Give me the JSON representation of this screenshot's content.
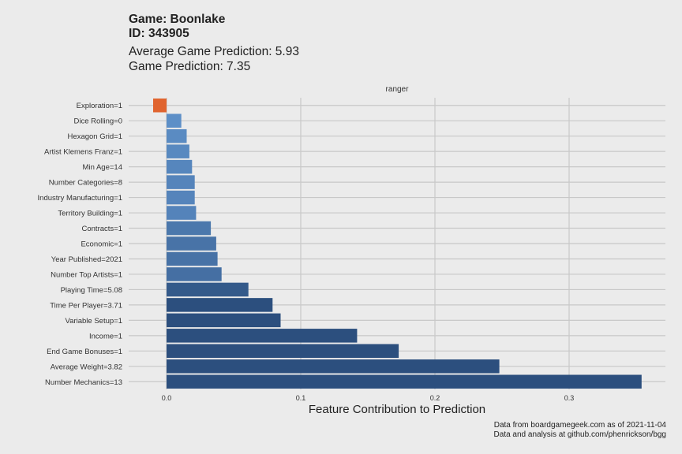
{
  "title": {
    "line1": "Game: Boonlake",
    "line2": "ID: 343905"
  },
  "subtitle": {
    "line1": "Average Game Prediction: 5.93",
    "line2": "Game Prediction: 7.35"
  },
  "caption": {
    "line1": "Data from boardgamegeek.com as of 2021-11-04",
    "line2": "Data and analysis at github.com/phenrickson/bgg"
  },
  "colors": {
    "negative": "#e0642f",
    "positive_low": "#5d8fc7",
    "positive_high": "#2c4f7e"
  },
  "chart_data": {
    "type": "bar",
    "orientation": "horizontal",
    "facet_label": "ranger",
    "xlabel": "Feature Contribution to Prediction",
    "ylabel": "",
    "xlim": [
      -0.03,
      0.37
    ],
    "x_ticks": [
      0.0,
      0.1,
      0.2,
      0.3
    ],
    "x_tick_labels": [
      "0.0",
      "0.1",
      "0.2",
      "0.3"
    ],
    "grid": true,
    "legend": "none",
    "categories": [
      "Exploration=1",
      "Dice Rolling=0",
      "Hexagon Grid=1",
      "Artist Klemens Franz=1",
      "Min Age=14",
      "Number Categories=8",
      "Industry Manufacturing=1",
      "Territory Building=1",
      "Contracts=1",
      "Economic=1",
      "Year Published=2021",
      "Number Top Artists=1",
      "Playing Time=5.08",
      "Time Per Player=3.71",
      "Variable Setup=1",
      "Income=1",
      "End Game Bonuses=1",
      "Average Weight=3.82",
      "Number Mechanics=13"
    ],
    "values": [
      -0.01,
      0.011,
      0.015,
      0.017,
      0.019,
      0.021,
      0.021,
      0.022,
      0.033,
      0.037,
      0.038,
      0.041,
      0.061,
      0.079,
      0.085,
      0.142,
      0.173,
      0.248,
      0.354
    ]
  }
}
